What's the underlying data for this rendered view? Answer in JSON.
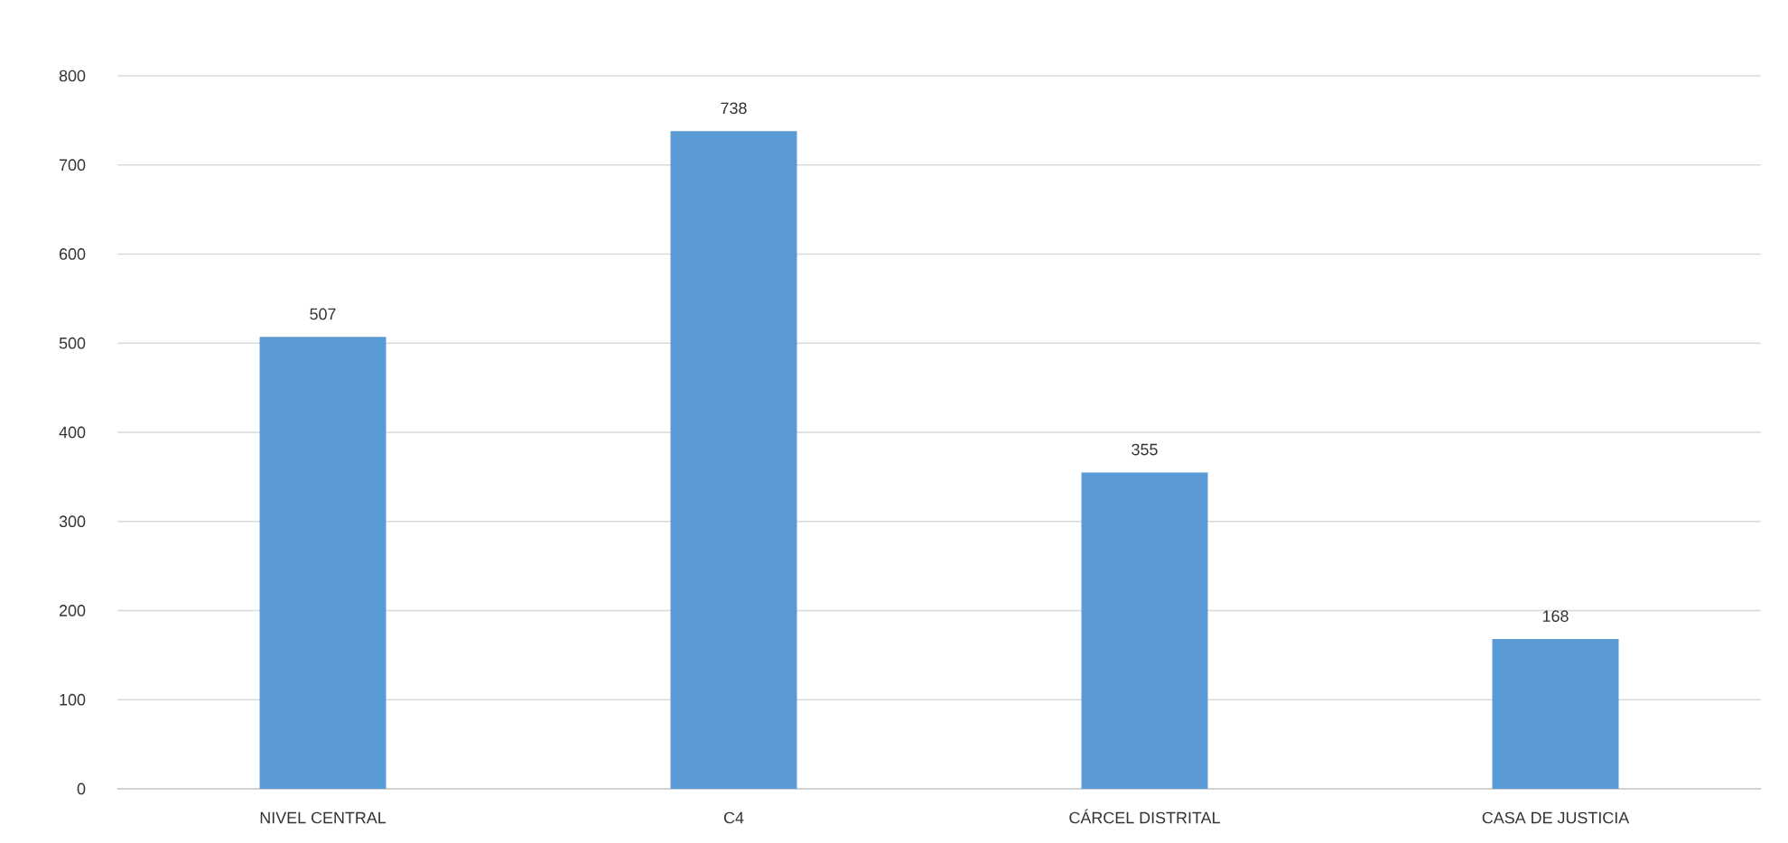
{
  "chart_data": {
    "type": "bar",
    "categories": [
      "NIVEL CENTRAL",
      "C4",
      "CÁRCEL DISTRITAL",
      "CASA DE JUSTICIA"
    ],
    "values": [
      507,
      738,
      355,
      168
    ],
    "color": "#5b9bd5",
    "ylim": [
      0,
      800
    ],
    "yticks": [
      0,
      100,
      200,
      300,
      400,
      500,
      600,
      700,
      800
    ],
    "grid": "y",
    "data_labels": true
  }
}
